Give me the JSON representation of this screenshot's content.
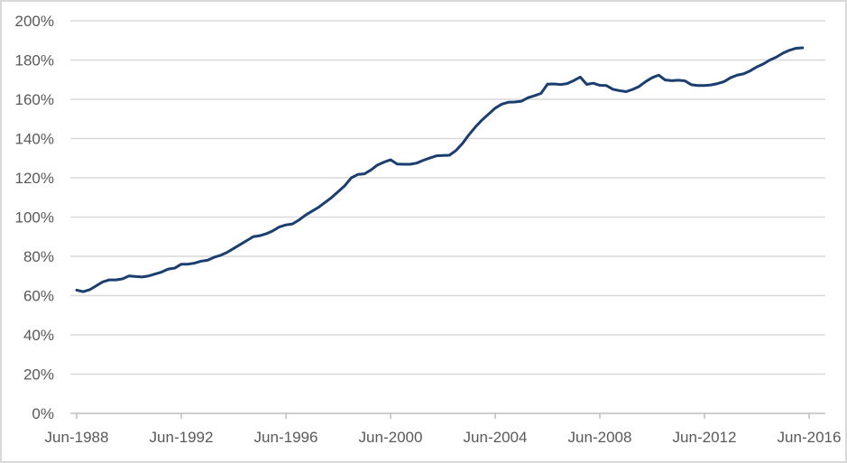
{
  "chart_data": {
    "type": "line",
    "title": "",
    "xlabel": "",
    "ylabel": "",
    "x_start": "Jun-1988",
    "x_end": "Mar-2016",
    "frequency": "quarterly",
    "ylim": [
      0,
      200
    ],
    "y_unit": "%",
    "grid": "horizontal",
    "legend": "none",
    "x_tick_labels": [
      "Jun-1988",
      "Jun-1992",
      "Jun-1996",
      "Jun-2000",
      "Jun-2004",
      "Jun-2008",
      "Jun-2012",
      "Jun-2016"
    ],
    "y_tick_labels": [
      "0%",
      "20%",
      "40%",
      "60%",
      "80%",
      "100%",
      "120%",
      "140%",
      "160%",
      "180%",
      "200%"
    ],
    "values": [
      62.8,
      62.0,
      63.0,
      65.0,
      67.0,
      68.0,
      68.0,
      68.5,
      70.0,
      69.7,
      69.5,
      70.0,
      71.0,
      72.0,
      73.5,
      74.0,
      76.0,
      76.0,
      76.5,
      77.5,
      78.0,
      79.5,
      80.5,
      82.0,
      84.0,
      86.0,
      88.0,
      90.0,
      90.5,
      91.5,
      93.0,
      95.0,
      96.0,
      96.5,
      98.5,
      101.0,
      103.0,
      105.0,
      107.5,
      110.0,
      113.0,
      116.0,
      120.0,
      121.7,
      122.0,
      124.0,
      126.5,
      128.0,
      129.2,
      127.0,
      126.9,
      126.9,
      127.5,
      128.9,
      130.1,
      131.2,
      131.4,
      131.5,
      133.9,
      137.5,
      142.0,
      146.0,
      149.5,
      152.5,
      155.5,
      157.5,
      158.5,
      158.6,
      159.0,
      160.8,
      161.8,
      163.0,
      167.7,
      167.8,
      167.5,
      168.0,
      169.5,
      171.3,
      167.6,
      168.2,
      167.1,
      167.0,
      165.1,
      164.4,
      163.9,
      165.0,
      166.5,
      169.0,
      171.0,
      172.3,
      169.8,
      169.5,
      169.7,
      169.4,
      167.4,
      167.0,
      167.0,
      167.3,
      168.0,
      169.0,
      171.0,
      172.3,
      173.0,
      174.5,
      176.5,
      178.0,
      180.0,
      181.5,
      183.5,
      185.0,
      186.0,
      186.2
    ]
  },
  "colors": {
    "line": "#1A3E6F",
    "gridline": "#D9D9D9",
    "axis": "#BFBFBF",
    "text": "#595959",
    "frame_border": "#D9D9D9",
    "background": "#FFFFFF"
  }
}
